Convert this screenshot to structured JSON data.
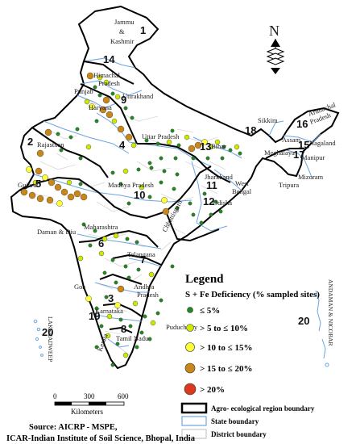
{
  "colors": {
    "class_1": "#1f8a1f",
    "class_2": "#cfe800",
    "class_3": "#ffff33",
    "class_4": "#c9871a",
    "class_5": "#d93a1f",
    "land": "#ffffff",
    "state_line": "#6aa6e0",
    "district_line": "#c8c8c8",
    "aer_line": "#000000"
  },
  "states": {
    "jk": "Jammu\n&\nKashmir",
    "hp": "Himachal\nPradesh",
    "punjab": "Punjab",
    "haryana": "Haryana",
    "uttarakhand": "Uttrakhand",
    "rajasthan": "Rajasthan",
    "up": "Uttar Pradesh",
    "bihar": "Bihar",
    "sikkim": "Sikkim",
    "arunachal": "Arunachal\nPradesh",
    "assam": "Assam",
    "nagaland": "Nagaland",
    "meghalaya": "Meghalaya",
    "manipur": "Manipur",
    "mizoram": "Mizoram",
    "tripura": "Tripura",
    "gujarat": "Gujarat",
    "mp": "Madhya Pradesh",
    "jharkhand": "Jharkhand",
    "wb": "West\nBengal",
    "chhattisgarh": "Chhattisgarh",
    "odisha": "Odisha",
    "daman": "Daman & Diu",
    "maharashtra": "Maharashtra",
    "telangana": "Telangana",
    "goa": "Goa",
    "ap": "Andhra\nPradesh",
    "karnataka": "Karnataka",
    "tn": "Tamil Nadu",
    "kerala": "Kerala",
    "puducherry": "Puducherry",
    "lakshadweep": "LAKSHADWEEP",
    "andaman": "ANDAMAN & NICOBAR"
  },
  "region_numbers": [
    "1",
    "2",
    "3",
    "4",
    "5",
    "6",
    "7",
    "8",
    "9",
    "10",
    "11",
    "12",
    "13",
    "14",
    "15",
    "16",
    "17",
    "18",
    "19",
    "20",
    "20"
  ],
  "north_arrow": "N",
  "legend": {
    "title": "Legend",
    "subtitle": "S + Fe  Deficiency (% sampled sites)",
    "classes": [
      {
        "label": "≤ 5%"
      },
      {
        "label": "> 5 to ≤ 10%"
      },
      {
        "label": "> 10 to ≤ 15%"
      },
      {
        "label": "> 15 to ≤ 20%"
      },
      {
        "label": "> 20%"
      }
    ],
    "boundaries": [
      {
        "label": "Agro- ecological region boundary"
      },
      {
        "label": "State boundary"
      },
      {
        "label": "District boundary"
      }
    ]
  },
  "scale_bar": {
    "ticks": [
      "0",
      "300",
      "600"
    ],
    "unit": "Kilometers"
  },
  "source": {
    "line1": "Source: AICRP - MSPE,",
    "line2": "ICAR-Indian Institute of Soil Science, Bhopal, India"
  }
}
